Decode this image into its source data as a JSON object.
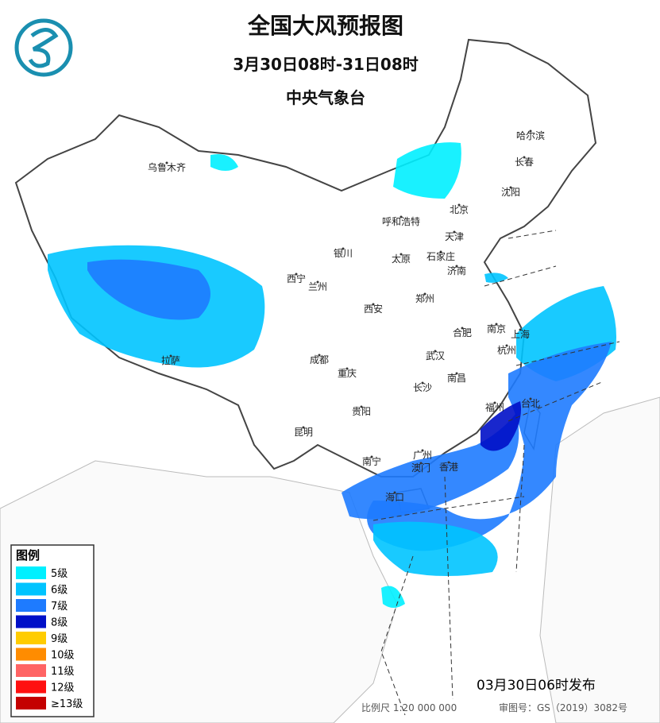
{
  "header": {
    "title": "全国大风预报图",
    "period": "3月30日08时-31日08时",
    "agency": "中央气象台"
  },
  "legend": {
    "title": "图例",
    "items": [
      {
        "label": "5级",
        "color": "#00f0ff"
      },
      {
        "label": "6级",
        "color": "#00c4ff"
      },
      {
        "label": "7级",
        "color": "#1e7bff"
      },
      {
        "label": "8级",
        "color": "#0010c8"
      },
      {
        "label": "9级",
        "color": "#ffcc00"
      },
      {
        "label": "10级",
        "color": "#ff8c00"
      },
      {
        "label": "11级",
        "color": "#ff6464"
      },
      {
        "label": "12级",
        "color": "#ff1010"
      },
      {
        "label": "≥13级",
        "color": "#c40000"
      }
    ]
  },
  "cities": [
    "乌鲁木齐",
    "哈尔滨",
    "长春",
    "沈阳",
    "北京",
    "呼和浩特",
    "天津",
    "银川",
    "太原",
    "石家庄",
    "济南",
    "西宁",
    "兰州",
    "郑州",
    "西安",
    "南京",
    "上海",
    "合肥",
    "杭州",
    "成都",
    "武汉",
    "重庆",
    "长沙",
    "南昌",
    "福州",
    "台北",
    "拉萨",
    "贵阳",
    "昆明",
    "南宁",
    "广州",
    "香港",
    "澳门",
    "海口"
  ],
  "footer": {
    "issued": "03月30日06时发布",
    "scale": "比例尺 1:20 000 000",
    "review": "审图号：GS（2019）3082号"
  }
}
